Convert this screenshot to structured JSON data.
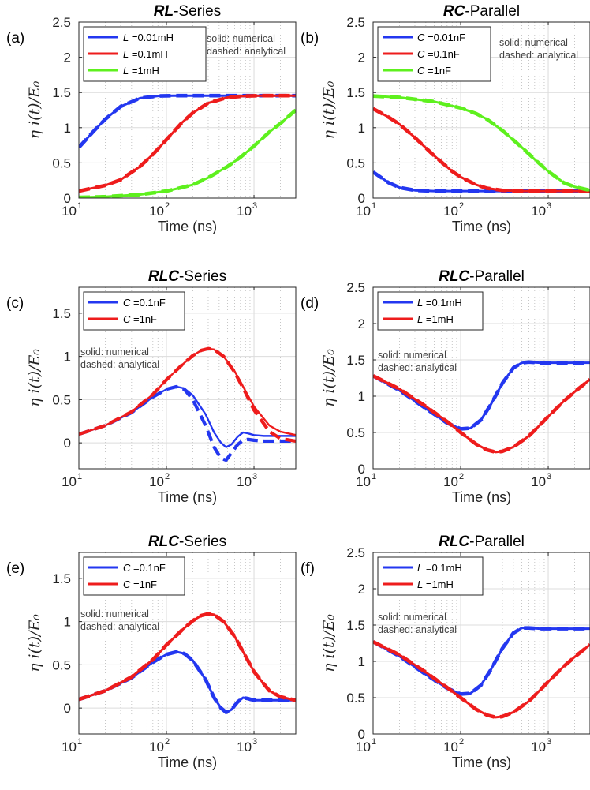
{
  "figure": {
    "x_label": "Time (ns)",
    "y_label": "η i(t)/E₀",
    "x_ticks": [
      {
        "base": "10",
        "exp": "1",
        "v": 10
      },
      {
        "base": "10",
        "exp": "2",
        "v": 100
      },
      {
        "base": "10",
        "exp": "3",
        "v": 1000
      }
    ],
    "note_line1": "solid: numerical",
    "note_line2": "dashed: analytical",
    "colors": {
      "blue": "#2337f0",
      "red": "#ee1c1c",
      "green": "#5ef01e"
    }
  },
  "chart_data": [
    {
      "panel": "(a)",
      "type": "line",
      "title_italic": "RL",
      "title_rest": "-Series",
      "xlabel": "Time (ns)",
      "ylabel": "η i(t)/E₀",
      "xscale": "log",
      "xlim": [
        10,
        3000
      ],
      "ylim": [
        0,
        2.5
      ],
      "yticks": [
        0,
        0.5,
        1,
        1.5,
        2,
        2.5
      ],
      "ytick_labels": [
        "0",
        "0.5",
        "1",
        "1.5",
        "2",
        "2.5"
      ],
      "legend_position": "top-left",
      "series": [
        {
          "name": "L =0.01mH",
          "var": "L",
          "val": "=0.01mH",
          "color": "blue",
          "x": [
            10,
            15,
            20,
            30,
            50,
            80,
            120,
            200,
            500,
            1000,
            3000
          ],
          "y": [
            0.72,
            0.96,
            1.12,
            1.3,
            1.42,
            1.45,
            1.455,
            1.455,
            1.455,
            1.455,
            1.455
          ]
        },
        {
          "name": "L =0.1mH",
          "var": "L",
          "val": "=0.1mH",
          "color": "red",
          "x": [
            10,
            20,
            30,
            50,
            70,
            100,
            150,
            200,
            300,
            500,
            800,
            1200,
            3000
          ],
          "y": [
            0.1,
            0.18,
            0.26,
            0.45,
            0.62,
            0.83,
            1.07,
            1.21,
            1.35,
            1.43,
            1.45,
            1.455,
            1.455
          ]
        },
        {
          "name": "L =1mH",
          "var": "L",
          "val": "=1mH",
          "color": "green",
          "x": [
            10,
            20,
            50,
            100,
            150,
            200,
            300,
            500,
            700,
            1000,
            1500,
            2000,
            3000
          ],
          "y": [
            0.01,
            0.02,
            0.05,
            0.1,
            0.15,
            0.19,
            0.29,
            0.45,
            0.58,
            0.74,
            0.94,
            1.06,
            1.25
          ]
        }
      ]
    },
    {
      "panel": "(b)",
      "type": "line",
      "title_italic": "RC",
      "title_rest": "-Parallel",
      "xlabel": "Time (ns)",
      "ylabel": "η i(t)/E₀",
      "xscale": "log",
      "xlim": [
        10,
        3000
      ],
      "ylim": [
        0,
        2.5
      ],
      "yticks": [
        0,
        0.5,
        1,
        1.5,
        2,
        2.5
      ],
      "ytick_labels": [
        "0",
        "0.5",
        "1",
        "1.5",
        "2",
        "2.5"
      ],
      "legend_position": "top-left",
      "series": [
        {
          "name": "C =0.01nF",
          "var": "C",
          "val": "=0.01nF",
          "color": "blue",
          "x": [
            10,
            15,
            20,
            30,
            50,
            100,
            300,
            1000,
            3000
          ],
          "y": [
            0.37,
            0.22,
            0.15,
            0.11,
            0.1,
            0.1,
            0.1,
            0.1,
            0.1
          ]
        },
        {
          "name": "C =0.1nF",
          "var": "C",
          "val": "=0.1nF",
          "color": "red",
          "x": [
            10,
            15,
            20,
            30,
            50,
            80,
            100,
            150,
            200,
            300,
            500,
            1000,
            3000
          ],
          "y": [
            1.27,
            1.15,
            1.05,
            0.86,
            0.6,
            0.38,
            0.3,
            0.19,
            0.14,
            0.11,
            0.1,
            0.1,
            0.1
          ]
        },
        {
          "name": "C =1nF",
          "var": "C",
          "val": "=1nF",
          "color": "green",
          "x": [
            10,
            20,
            50,
            100,
            150,
            200,
            300,
            500,
            700,
            1000,
            1500,
            2000,
            3000
          ],
          "y": [
            1.45,
            1.43,
            1.37,
            1.28,
            1.2,
            1.12,
            0.96,
            0.72,
            0.55,
            0.38,
            0.22,
            0.16,
            0.11
          ]
        }
      ]
    },
    {
      "panel": "(c)",
      "type": "line",
      "title_italic": "RLC",
      "title_rest": "-Series",
      "xlabel": "Time (ns)",
      "ylabel": "η i(t)/E₀",
      "xscale": "log",
      "xlim": [
        10,
        3000
      ],
      "ylim": [
        -0.3,
        1.8
      ],
      "yticks": [
        0,
        0.5,
        1,
        1.5
      ],
      "ytick_labels": [
        "0",
        "0.5",
        "1",
        "1.5"
      ],
      "legend_position": "top-left",
      "series": [
        {
          "name": "C =0.1nF (numerical)",
          "var": "C",
          "val": "=0.1nF",
          "color": "blue",
          "style": "solid",
          "x": [
            10,
            20,
            40,
            70,
            100,
            130,
            160,
            200,
            280,
            350,
            420,
            480,
            550,
            650,
            750,
            850,
            1000,
            1300,
            2000,
            3000
          ],
          "y": [
            0.1,
            0.2,
            0.35,
            0.53,
            0.62,
            0.65,
            0.63,
            0.55,
            0.33,
            0.12,
            0.0,
            -0.05,
            -0.02,
            0.07,
            0.12,
            0.11,
            0.09,
            0.08,
            0.08,
            0.08
          ]
        },
        {
          "name": "C =0.1nF (analytical)",
          "color": "blue",
          "style": "dashed",
          "x": [
            10,
            20,
            40,
            70,
            100,
            130,
            160,
            200,
            280,
            350,
            420,
            480,
            550,
            650,
            750,
            850,
            1000,
            1300,
            2000,
            3000
          ],
          "y": [
            0.1,
            0.2,
            0.35,
            0.53,
            0.62,
            0.65,
            0.62,
            0.5,
            0.2,
            -0.05,
            -0.18,
            -0.2,
            -0.12,
            -0.02,
            0.03,
            0.04,
            0.03,
            0.02,
            0.02,
            0.02
          ]
        },
        {
          "name": "C =1nF (numerical)",
          "var": "C",
          "val": "=1nF",
          "color": "red",
          "style": "solid",
          "x": [
            10,
            20,
            40,
            70,
            100,
            150,
            200,
            250,
            300,
            350,
            450,
            600,
            800,
            1000,
            1500,
            2000,
            3000
          ],
          "y": [
            0.1,
            0.2,
            0.36,
            0.56,
            0.73,
            0.9,
            1.01,
            1.07,
            1.09,
            1.08,
            1.0,
            0.83,
            0.6,
            0.42,
            0.2,
            0.13,
            0.09
          ]
        },
        {
          "name": "C =1nF (analytical)",
          "color": "red",
          "style": "dashed",
          "x": [
            10,
            20,
            40,
            70,
            100,
            150,
            200,
            250,
            300,
            350,
            450,
            600,
            800,
            1000,
            1500,
            2000,
            3000
          ],
          "y": [
            0.1,
            0.2,
            0.36,
            0.56,
            0.73,
            0.9,
            1.01,
            1.07,
            1.09,
            1.08,
            1.0,
            0.82,
            0.58,
            0.38,
            0.13,
            0.05,
            0.02
          ]
        }
      ]
    },
    {
      "panel": "(d)",
      "type": "line",
      "title_italic": "RLC",
      "title_rest": "-Parallel",
      "xlabel": "Time (ns)",
      "ylabel": "η i(t)/E₀",
      "xscale": "log",
      "xlim": [
        10,
        3000
      ],
      "ylim": [
        0,
        2.5
      ],
      "yticks": [
        0,
        0.5,
        1,
        1.5,
        2,
        2.5
      ],
      "ytick_labels": [
        "0",
        "0.5",
        "1",
        "1.5",
        "2",
        "2.5"
      ],
      "legend_position": "top-left",
      "series": [
        {
          "name": "L =0.1mH",
          "var": "L",
          "val": "=0.1mH",
          "color": "blue",
          "x": [
            10,
            20,
            40,
            70,
            100,
            130,
            170,
            220,
            300,
            400,
            500,
            600,
            800,
            1200,
            3000
          ],
          "y": [
            1.28,
            1.08,
            0.83,
            0.63,
            0.55,
            0.56,
            0.67,
            0.88,
            1.18,
            1.39,
            1.46,
            1.47,
            1.46,
            1.46,
            1.46
          ]
        },
        {
          "name": "L =1mH",
          "var": "L",
          "val": "=1mH",
          "color": "red",
          "x": [
            10,
            20,
            40,
            70,
            100,
            150,
            200,
            250,
            300,
            400,
            600,
            800,
            1000,
            1500,
            2000,
            3000
          ],
          "y": [
            1.28,
            1.1,
            0.86,
            0.65,
            0.5,
            0.34,
            0.26,
            0.23,
            0.24,
            0.3,
            0.45,
            0.6,
            0.72,
            0.93,
            1.06,
            1.23
          ]
        }
      ]
    },
    {
      "panel": "(e)",
      "type": "line",
      "title_italic": "RLC",
      "title_rest": "-Series",
      "xlabel": "Time (ns)",
      "ylabel": "η i(t)/E₀",
      "xscale": "log",
      "xlim": [
        10,
        3000
      ],
      "ylim": [
        -0.3,
        1.8
      ],
      "yticks": [
        0,
        0.5,
        1,
        1.5
      ],
      "ytick_labels": [
        "0",
        "0.5",
        "1",
        "1.5"
      ],
      "legend_position": "top-left",
      "series": [
        {
          "name": "C =0.1nF",
          "var": "C",
          "val": "=0.1nF",
          "color": "blue",
          "x": [
            10,
            20,
            40,
            70,
            100,
            130,
            160,
            200,
            280,
            350,
            420,
            480,
            550,
            650,
            750,
            850,
            1000,
            1300,
            2000,
            3000
          ],
          "y": [
            0.1,
            0.2,
            0.35,
            0.53,
            0.62,
            0.65,
            0.63,
            0.55,
            0.33,
            0.12,
            0.0,
            -0.05,
            -0.02,
            0.07,
            0.12,
            0.11,
            0.09,
            0.09,
            0.09,
            0.09
          ]
        },
        {
          "name": "C =1nF",
          "var": "C",
          "val": "=1nF",
          "color": "red",
          "x": [
            10,
            20,
            40,
            70,
            100,
            150,
            200,
            250,
            300,
            350,
            450,
            600,
            800,
            1000,
            1500,
            2000,
            3000
          ],
          "y": [
            0.1,
            0.2,
            0.36,
            0.56,
            0.73,
            0.9,
            1.01,
            1.07,
            1.09,
            1.08,
            1.0,
            0.83,
            0.6,
            0.42,
            0.2,
            0.13,
            0.09
          ]
        }
      ]
    },
    {
      "panel": "(f)",
      "type": "line",
      "title_italic": "RLC",
      "title_rest": "-Parallel",
      "xlabel": "Time (ns)",
      "ylabel": "η i(t)/E₀",
      "xscale": "log",
      "xlim": [
        10,
        3000
      ],
      "ylim": [
        0,
        2.5
      ],
      "yticks": [
        0,
        0.5,
        1,
        1.5,
        2,
        2.5
      ],
      "ytick_labels": [
        "0",
        "0.5",
        "1",
        "1.5",
        "2",
        "2.5"
      ],
      "legend_position": "top-left",
      "series": [
        {
          "name": "L =0.1mH",
          "var": "L",
          "val": "=0.1mH",
          "color": "blue",
          "x": [
            10,
            20,
            40,
            70,
            100,
            130,
            170,
            220,
            300,
            400,
            500,
            600,
            800,
            1200,
            3000
          ],
          "y": [
            1.27,
            1.07,
            0.82,
            0.63,
            0.55,
            0.56,
            0.67,
            0.88,
            1.18,
            1.39,
            1.46,
            1.46,
            1.45,
            1.45,
            1.45
          ]
        },
        {
          "name": "L =1mH",
          "var": "L",
          "val": "=1mH",
          "color": "red",
          "x": [
            10,
            20,
            40,
            70,
            100,
            150,
            200,
            250,
            300,
            400,
            600,
            800,
            1000,
            1500,
            2000,
            3000
          ],
          "y": [
            1.27,
            1.09,
            0.85,
            0.64,
            0.5,
            0.34,
            0.26,
            0.23,
            0.24,
            0.3,
            0.45,
            0.6,
            0.72,
            0.93,
            1.06,
            1.23
          ]
        }
      ]
    }
  ]
}
